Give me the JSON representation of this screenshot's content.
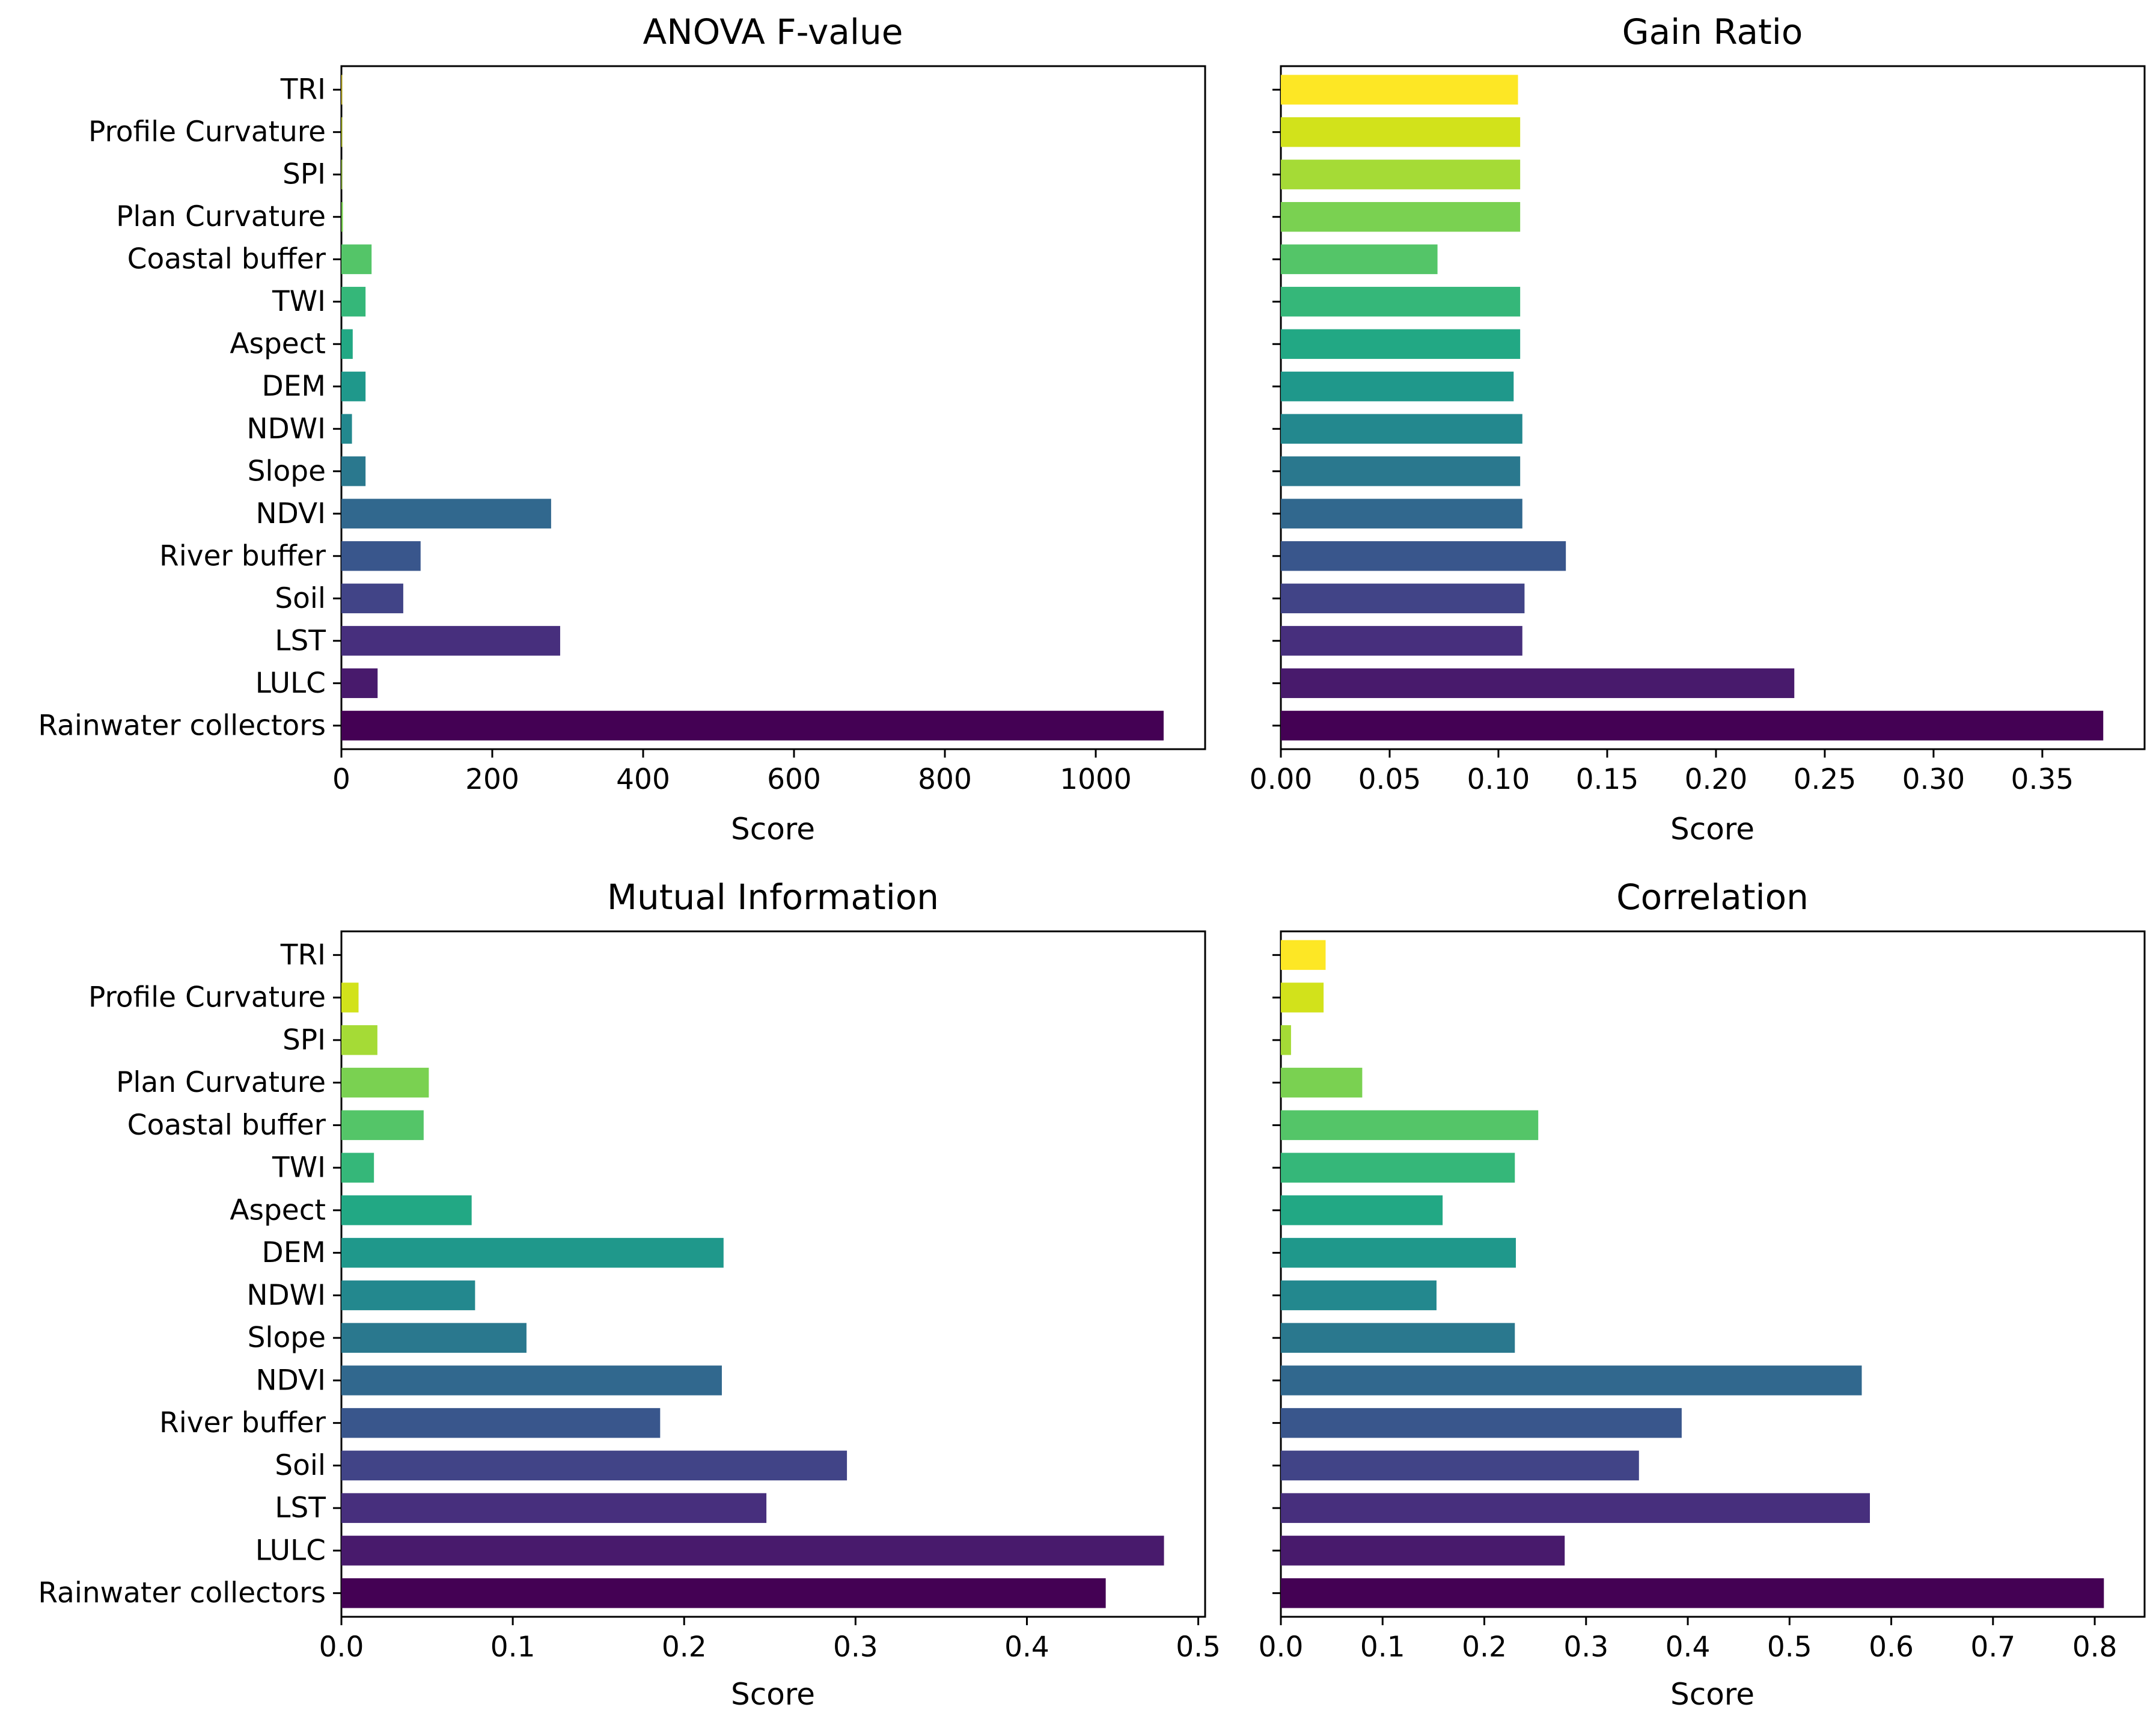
{
  "figure": {
    "x_label": "Score"
  },
  "features": [
    "Rainwater collectors",
    "LULC",
    "LST",
    "Soil",
    "River buffer",
    "NDVI",
    "Slope",
    "NDWI",
    "DEM",
    "Aspect",
    "TWI",
    "Coastal buffer",
    "Plan Curvature",
    "SPI",
    "Profile Curvature",
    "TRI"
  ],
  "palette": [
    "#440154",
    "#481a6c",
    "#472f7d",
    "#414487",
    "#39568c",
    "#31688e",
    "#2a788e",
    "#23888e",
    "#1f988b",
    "#22a884",
    "#35b779",
    "#54c568",
    "#7ad151",
    "#a5db36",
    "#d2e21b",
    "#fde725"
  ],
  "chart_data": [
    {
      "type": "bar",
      "orientation": "horizontal",
      "title": "ANOVA F-value",
      "xlabel": "Score",
      "categories": [
        "Rainwater collectors",
        "LULC",
        "LST",
        "Soil",
        "River buffer",
        "NDVI",
        "Slope",
        "NDWI",
        "DEM",
        "Aspect",
        "TWI",
        "Coastal buffer",
        "Plan Curvature",
        "SPI",
        "Profile Curvature",
        "TRI"
      ],
      "values": [
        1090,
        48,
        290,
        82,
        105,
        278,
        32,
        14,
        32,
        15,
        32,
        40,
        2,
        1,
        1,
        1
      ],
      "xlim": [
        0,
        1145
      ],
      "xticks": [
        0,
        200,
        400,
        600,
        800,
        1000
      ],
      "xtick_labels": [
        "0",
        "200",
        "400",
        "600",
        "800",
        "1000"
      ],
      "show_ytick_labels": true
    },
    {
      "type": "bar",
      "orientation": "horizontal",
      "title": "Gain Ratio",
      "xlabel": "Score",
      "categories": [
        "Rainwater collectors",
        "LULC",
        "LST",
        "Soil",
        "River buffer",
        "NDVI",
        "Slope",
        "NDWI",
        "DEM",
        "Aspect",
        "TWI",
        "Coastal buffer",
        "Plan Curvature",
        "SPI",
        "Profile Curvature",
        "TRI"
      ],
      "values": [
        0.378,
        0.236,
        0.111,
        0.112,
        0.131,
        0.111,
        0.11,
        0.111,
        0.107,
        0.11,
        0.11,
        0.072,
        0.11,
        0.11,
        0.11,
        0.109
      ],
      "xlim": [
        0,
        0.397
      ],
      "xticks": [
        0,
        0.05,
        0.1,
        0.15,
        0.2,
        0.25,
        0.3,
        0.35
      ],
      "xtick_labels": [
        "0.00",
        "0.05",
        "0.10",
        "0.15",
        "0.20",
        "0.25",
        "0.30",
        "0.35"
      ],
      "show_ytick_labels": false
    },
    {
      "type": "bar",
      "orientation": "horizontal",
      "title": "Mutual Information",
      "xlabel": "Score",
      "categories": [
        "Rainwater collectors",
        "LULC",
        "LST",
        "Soil",
        "River buffer",
        "NDVI",
        "Slope",
        "NDWI",
        "DEM",
        "Aspect",
        "TWI",
        "Coastal buffer",
        "Plan Curvature",
        "SPI",
        "Profile Curvature",
        "TRI"
      ],
      "values": [
        0.446,
        0.48,
        0.248,
        0.295,
        0.186,
        0.222,
        0.108,
        0.078,
        0.223,
        0.076,
        0.019,
        0.048,
        0.051,
        0.021,
        0.01,
        0.0
      ],
      "xlim": [
        0,
        0.504
      ],
      "xticks": [
        0,
        0.1,
        0.2,
        0.3,
        0.4,
        0.5
      ],
      "xtick_labels": [
        "0.0",
        "0.1",
        "0.2",
        "0.3",
        "0.4",
        "0.5"
      ],
      "show_ytick_labels": true
    },
    {
      "type": "bar",
      "orientation": "horizontal",
      "title": "Correlation",
      "xlabel": "Score",
      "categories": [
        "Rainwater collectors",
        "LULC",
        "LST",
        "Soil",
        "River buffer",
        "NDVI",
        "Slope",
        "NDWI",
        "DEM",
        "Aspect",
        "TWI",
        "Coastal buffer",
        "Plan Curvature",
        "SPI",
        "Profile Curvature",
        "TRI"
      ],
      "values": [
        0.809,
        0.279,
        0.579,
        0.352,
        0.394,
        0.571,
        0.23,
        0.153,
        0.231,
        0.159,
        0.23,
        0.253,
        0.08,
        0.01,
        0.042,
        0.044
      ],
      "xlim": [
        0,
        0.849
      ],
      "xticks": [
        0,
        0.1,
        0.2,
        0.3,
        0.4,
        0.5,
        0.6,
        0.7,
        0.8
      ],
      "xtick_labels": [
        "0.0",
        "0.1",
        "0.2",
        "0.3",
        "0.4",
        "0.5",
        "0.6",
        "0.7",
        "0.8"
      ],
      "show_ytick_labels": false
    }
  ]
}
